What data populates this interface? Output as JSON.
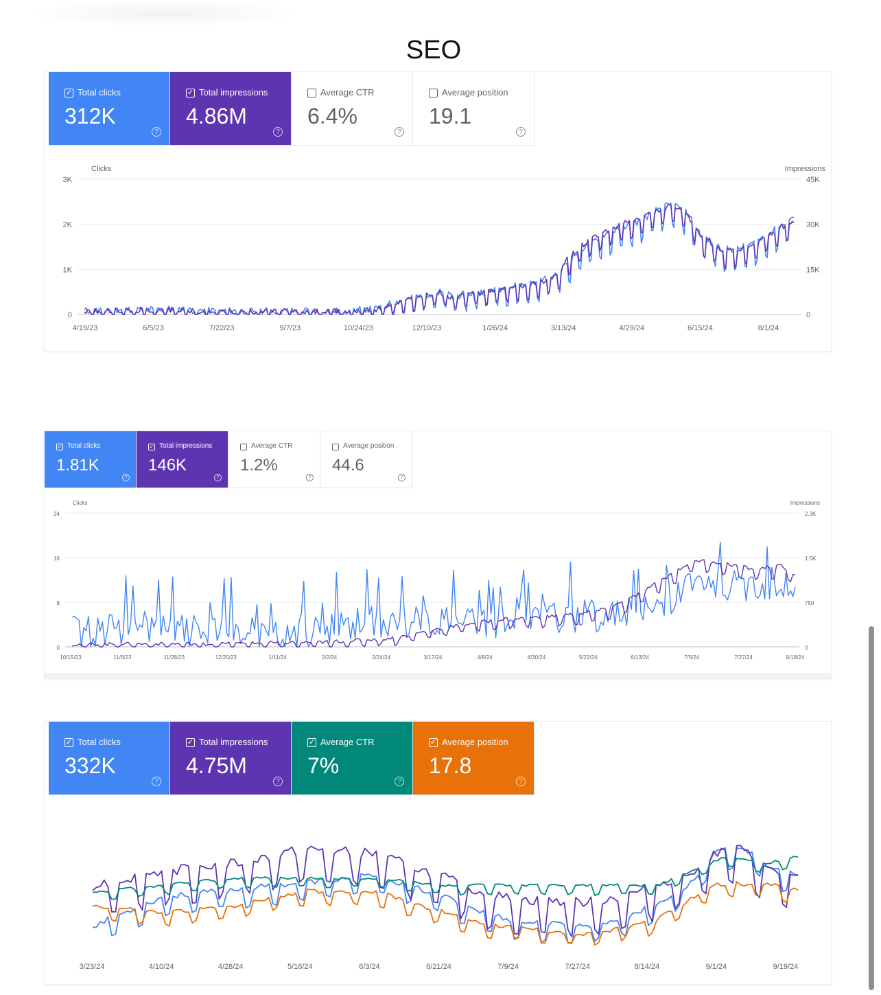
{
  "page_title": "SEO",
  "colors": {
    "clicks": "#4285f4",
    "impressions": "#5e35b1",
    "ctr": "#00897b",
    "position": "#e8710a"
  },
  "panels": [
    {
      "cards": [
        {
          "label": "Total clicks",
          "value": "312K",
          "checked": true,
          "color": "#4285f4"
        },
        {
          "label": "Total impressions",
          "value": "4.86M",
          "checked": true,
          "color": "#5e35b1"
        },
        {
          "label": "Average CTR",
          "value": "6.4%",
          "checked": false,
          "color": "#ffffff"
        },
        {
          "label": "Average position",
          "value": "19.1",
          "checked": false,
          "color": "#ffffff"
        }
      ],
      "chart_data": {
        "type": "line",
        "title": "",
        "xlabel": "",
        "ylabel_left": "Clicks",
        "ylabel_right": "Impressions",
        "y_left_ticks": [
          "0",
          "1K",
          "2K",
          "3K"
        ],
        "y_right_ticks": [
          "0",
          "15K",
          "30K",
          "45K"
        ],
        "ylim_left": [
          0,
          3000
        ],
        "ylim_right": [
          0,
          45000
        ],
        "x_ticks": [
          "4/19/23",
          "6/5/23",
          "7/22/23",
          "9/7/23",
          "10/24/23",
          "12/10/23",
          "1/26/24",
          "3/13/24",
          "4/29/24",
          "6/15/24",
          "8/1/24"
        ],
        "grid": true,
        "series": [
          {
            "name": "Total clicks",
            "axis": "left",
            "color": "#4285f4",
            "anchors": [
              [
                0,
                10
              ],
              [
                0.05,
                30
              ],
              [
                0.1,
                40
              ],
              [
                0.13,
                50
              ],
              [
                0.16,
                10
              ],
              [
                0.2,
                10
              ],
              [
                0.3,
                10
              ],
              [
                0.37,
                10
              ],
              [
                0.39,
                40
              ],
              [
                0.41,
                40
              ],
              [
                0.43,
                150
              ],
              [
                0.47,
                300
              ],
              [
                0.5,
                400
              ],
              [
                0.52,
                300
              ],
              [
                0.56,
                400
              ],
              [
                0.6,
                500
              ],
              [
                0.64,
                600
              ],
              [
                0.67,
                800
              ],
              [
                0.68,
                1000
              ],
              [
                0.7,
                1300
              ],
              [
                0.73,
                1600
              ],
              [
                0.76,
                1800
              ],
              [
                0.78,
                1900
              ],
              [
                0.81,
                2200
              ],
              [
                0.83,
                2300
              ],
              [
                0.85,
                2100
              ],
              [
                0.87,
                1600
              ],
              [
                0.9,
                1300
              ],
              [
                0.92,
                1300
              ],
              [
                0.94,
                1400
              ],
              [
                0.96,
                1600
              ],
              [
                0.98,
                1800
              ],
              [
                0.995,
                2000
              ]
            ],
            "weekly_amplitude": 300
          },
          {
            "name": "Total impressions",
            "axis": "right",
            "color": "#5e35b1",
            "anchors": [
              [
                0,
                150
              ],
              [
                0.05,
                450
              ],
              [
                0.1,
                600
              ],
              [
                0.13,
                750
              ],
              [
                0.16,
                150
              ],
              [
                0.2,
                150
              ],
              [
                0.3,
                150
              ],
              [
                0.37,
                150
              ],
              [
                0.39,
                600
              ],
              [
                0.41,
                750
              ],
              [
                0.43,
                2250
              ],
              [
                0.47,
                4500
              ],
              [
                0.5,
                6000
              ],
              [
                0.52,
                4500
              ],
              [
                0.56,
                6000
              ],
              [
                0.6,
                7500
              ],
              [
                0.64,
                9000
              ],
              [
                0.67,
                12000
              ],
              [
                0.68,
                16500
              ],
              [
                0.7,
                21000
              ],
              [
                0.73,
                25500
              ],
              [
                0.76,
                28500
              ],
              [
                0.78,
                30000
              ],
              [
                0.81,
                33000
              ],
              [
                0.83,
                34500
              ],
              [
                0.85,
                31500
              ],
              [
                0.87,
                24000
              ],
              [
                0.9,
                19500
              ],
              [
                0.92,
                19500
              ],
              [
                0.94,
                21000
              ],
              [
                0.96,
                24000
              ],
              [
                0.98,
                27000
              ],
              [
                0.995,
                28500
              ]
            ],
            "weekly_amplitude": 3500
          }
        ]
      }
    },
    {
      "cards": [
        {
          "label": "Total clicks",
          "value": "1.81K",
          "checked": true,
          "color": "#4285f4"
        },
        {
          "label": "Total impressions",
          "value": "146K",
          "checked": true,
          "color": "#5e35b1"
        },
        {
          "label": "Average CTR",
          "value": "1.2%",
          "checked": false,
          "color": "#ffffff"
        },
        {
          "label": "Average position",
          "value": "44.6",
          "checked": false,
          "color": "#ffffff"
        }
      ],
      "chart_data": {
        "type": "line",
        "title": "",
        "xlabel": "",
        "ylabel_left": "Clicks",
        "ylabel_right": "Impressions",
        "y_left_ticks": [
          "0",
          "8",
          "16",
          "24"
        ],
        "y_right_ticks": [
          "0",
          "750",
          "1.5K",
          "2.3K"
        ],
        "ylim_left": [
          0,
          24
        ],
        "ylim_right": [
          0,
          2250
        ],
        "x_ticks": [
          "10/15/23",
          "11/6/23",
          "11/28/23",
          "12/20/23",
          "1/11/24",
          "2/2/24",
          "2/24/24",
          "3/17/24",
          "4/8/24",
          "4/30/24",
          "5/22/24",
          "6/13/24",
          "7/5/24",
          "7/27/24",
          "8/18/24"
        ],
        "grid": true,
        "series": [
          {
            "name": "Total clicks",
            "axis": "left",
            "color": "#4285f4",
            "anchors": [
              [
                0,
                2
              ],
              [
                0.1,
                3
              ],
              [
                0.2,
                2
              ],
              [
                0.3,
                1
              ],
              [
                0.4,
                4
              ],
              [
                0.5,
                4
              ],
              [
                0.6,
                4
              ],
              [
                0.7,
                5
              ],
              [
                0.75,
                5
              ],
              [
                0.8,
                6
              ],
              [
                0.85,
                10
              ],
              [
                0.9,
                10
              ],
              [
                0.95,
                11
              ],
              [
                1,
                10
              ]
            ],
            "noise_amplitude": 6
          },
          {
            "name": "Total impressions",
            "axis": "right",
            "color": "#5e35b1",
            "anchors": [
              [
                0,
                10
              ],
              [
                0.1,
                20
              ],
              [
                0.2,
                20
              ],
              [
                0.3,
                40
              ],
              [
                0.35,
                50
              ],
              [
                0.4,
                80
              ],
              [
                0.45,
                120
              ],
              [
                0.5,
                250
              ],
              [
                0.55,
                350
              ],
              [
                0.6,
                420
              ],
              [
                0.65,
                450
              ],
              [
                0.7,
                500
              ],
              [
                0.74,
                580
              ],
              [
                0.78,
                800
              ],
              [
                0.82,
                1100
              ],
              [
                0.86,
                1400
              ],
              [
                0.9,
                1350
              ],
              [
                0.94,
                1250
              ],
              [
                0.98,
                1300
              ],
              [
                1,
                1150
              ]
            ],
            "weekly_amplitude": 120
          }
        ]
      }
    },
    {
      "cards": [
        {
          "label": "Total clicks",
          "value": "332K",
          "checked": true,
          "color": "#4285f4"
        },
        {
          "label": "Total impressions",
          "value": "4.75M",
          "checked": true,
          "color": "#5e35b1"
        },
        {
          "label": "Average CTR",
          "value": "7%",
          "checked": true,
          "color": "#00897b"
        },
        {
          "label": "Average position",
          "value": "17.8",
          "checked": true,
          "color": "#e8710a"
        }
      ],
      "chart_data": {
        "type": "line",
        "title": "",
        "xlabel": "",
        "x_ticks": [
          "3/23/24",
          "4/10/24",
          "4/28/24",
          "5/16/24",
          "6/3/24",
          "6/21/24",
          "7/9/24",
          "7/27/24",
          "8/14/24",
          "9/1/24",
          "9/19/24"
        ],
        "grid": false,
        "axes_hidden": true,
        "series": [
          {
            "name": "Total clicks",
            "color": "#4285f4",
            "anchors": [
              [
                0,
                0.25
              ],
              [
                0.1,
                0.45
              ],
              [
                0.2,
                0.5
              ],
              [
                0.3,
                0.55
              ],
              [
                0.4,
                0.6
              ],
              [
                0.5,
                0.45
              ],
              [
                0.55,
                0.35
              ],
              [
                0.6,
                0.28
              ],
              [
                0.7,
                0.25
              ],
              [
                0.75,
                0.3
              ],
              [
                0.8,
                0.4
              ],
              [
                0.85,
                0.55
              ],
              [
                0.88,
                0.75
              ],
              [
                0.92,
                0.8
              ],
              [
                0.96,
                0.65
              ],
              [
                1,
                0.6
              ]
            ],
            "weekly_amplitude": 0.08
          },
          {
            "name": "Total impressions",
            "color": "#5e35b1",
            "anchors": [
              [
                0,
                0.5
              ],
              [
                0.1,
                0.6
              ],
              [
                0.2,
                0.65
              ],
              [
                0.3,
                0.75
              ],
              [
                0.4,
                0.72
              ],
              [
                0.5,
                0.55
              ],
              [
                0.55,
                0.45
              ],
              [
                0.6,
                0.4
              ],
              [
                0.7,
                0.38
              ],
              [
                0.75,
                0.42
              ],
              [
                0.8,
                0.5
              ],
              [
                0.85,
                0.6
              ],
              [
                0.88,
                0.72
              ],
              [
                0.92,
                0.75
              ],
              [
                0.96,
                0.6
              ],
              [
                1,
                0.55
              ]
            ],
            "weekly_amplitude": 0.14
          },
          {
            "name": "Average CTR",
            "color": "#00897b",
            "anchors": [
              [
                0,
                0.5
              ],
              [
                0.1,
                0.55
              ],
              [
                0.2,
                0.6
              ],
              [
                0.3,
                0.6
              ],
              [
                0.4,
                0.6
              ],
              [
                0.5,
                0.55
              ],
              [
                0.6,
                0.55
              ],
              [
                0.7,
                0.55
              ],
              [
                0.8,
                0.55
              ],
              [
                0.85,
                0.65
              ],
              [
                0.9,
                0.75
              ],
              [
                0.95,
                0.7
              ],
              [
                1,
                0.75
              ]
            ],
            "weekly_amplitude": 0.04
          },
          {
            "name": "Average position",
            "color": "#e8710a",
            "anchors": [
              [
                0,
                0.4
              ],
              [
                0.1,
                0.35
              ],
              [
                0.2,
                0.4
              ],
              [
                0.3,
                0.5
              ],
              [
                0.4,
                0.5
              ],
              [
                0.5,
                0.35
              ],
              [
                0.55,
                0.28
              ],
              [
                0.6,
                0.25
              ],
              [
                0.7,
                0.2
              ],
              [
                0.75,
                0.25
              ],
              [
                0.8,
                0.3
              ],
              [
                0.85,
                0.45
              ],
              [
                0.88,
                0.55
              ],
              [
                0.92,
                0.55
              ],
              [
                0.96,
                0.55
              ],
              [
                1,
                0.5
              ]
            ],
            "weekly_amplitude": 0.06
          }
        ]
      }
    }
  ]
}
